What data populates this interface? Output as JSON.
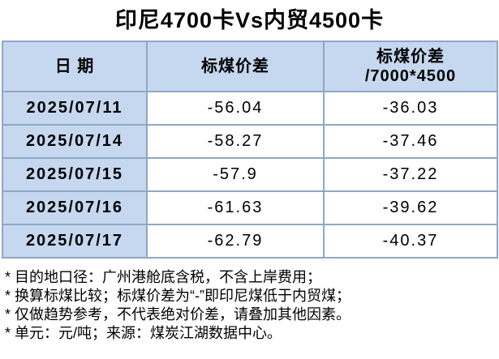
{
  "title": "印尼4700卡Vs内贸4500卡",
  "table": {
    "header": [
      "日 期",
      "标煤价差",
      "标煤价差\n/7000*4500"
    ],
    "rows": [
      [
        "2025/07/11",
        -56.04,
        -36.03
      ],
      [
        "2025/07/14",
        -58.27,
        -37.46
      ],
      [
        "2025/07/15",
        -57.9,
        -37.22
      ],
      [
        "2025/07/16",
        -61.63,
        -39.62
      ],
      [
        "2025/07/17",
        -62.79,
        -40.37
      ]
    ]
  },
  "notes": [
    "* 目的地口径：广州港舱底含税，不含上岸费用；",
    "* 换算标煤比较；标煤价差为“-”即印尼煤低于内贸煤；",
    "* 仅做趋势参考，不代表绝对价差，请叠加其他因素。",
    "* 单元：元/吨；来源：煤炭江湖数据中心。"
  ]
}
